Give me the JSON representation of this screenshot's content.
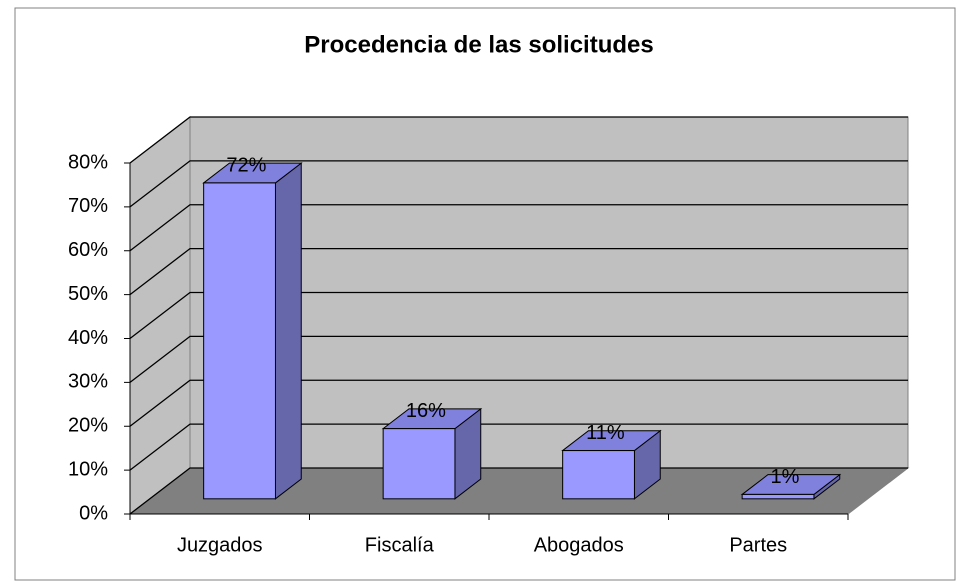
{
  "chart_data": {
    "type": "bar3d",
    "title": "Procedencia de las solicitudes",
    "categories": [
      "Juzgados",
      "Fiscalía",
      "Abogados",
      "Partes"
    ],
    "values": [
      72,
      16,
      11,
      1
    ],
    "value_labels": [
      "72%",
      "16%",
      "11%",
      "1%"
    ],
    "color": "#9999ff",
    "ylim": [
      0,
      80
    ],
    "yticks": [
      {
        "value": 0,
        "label": "0%"
      },
      {
        "value": 10,
        "label": "10%"
      },
      {
        "value": 20,
        "label": "20%"
      },
      {
        "value": 30,
        "label": "30%"
      },
      {
        "value": 40,
        "label": "40%"
      },
      {
        "value": 50,
        "label": "50%"
      },
      {
        "value": 60,
        "label": "60%"
      },
      {
        "value": 70,
        "label": "70%"
      },
      {
        "value": 80,
        "label": "80%"
      }
    ],
    "grid": true
  }
}
